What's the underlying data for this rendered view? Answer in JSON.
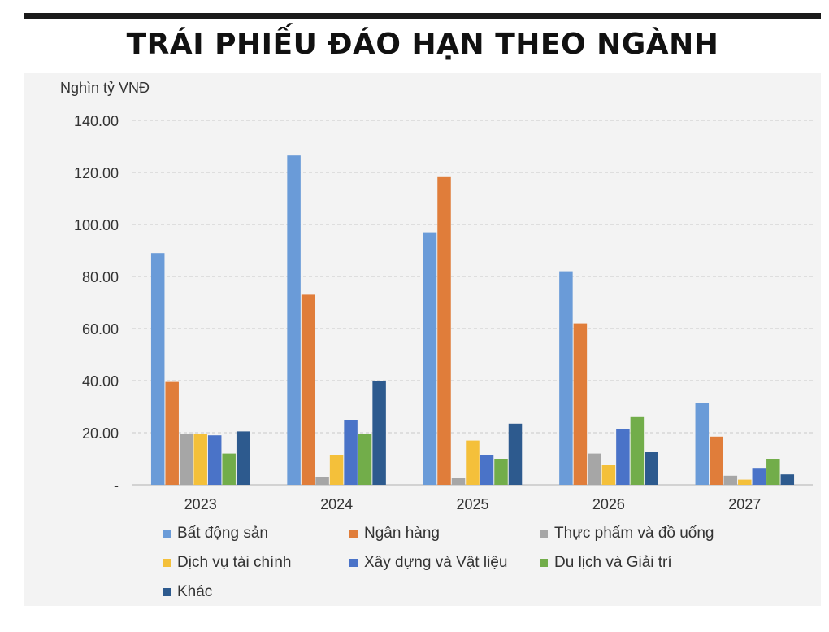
{
  "title": "TRÁI PHIẾU ĐÁO HẠN THEO NGÀNH",
  "chart_data": {
    "type": "bar",
    "ylabel": "Nghìn tỷ VNĐ",
    "categories": [
      "2023",
      "2024",
      "2025",
      "2026",
      "2027"
    ],
    "ylim": [
      0,
      140
    ],
    "yticks": [
      {
        "value": 0,
        "label": "-"
      },
      {
        "value": 20,
        "label": "20.00"
      },
      {
        "value": 40,
        "label": "40.00"
      },
      {
        "value": 60,
        "label": "60.00"
      },
      {
        "value": 80,
        "label": "80.00"
      },
      {
        "value": 100,
        "label": "100.00"
      },
      {
        "value": 120,
        "label": "120.00"
      },
      {
        "value": 140,
        "label": "140.00"
      }
    ],
    "grid": true,
    "legend_position": "bottom",
    "series": [
      {
        "name": "Bất động sản",
        "color": "#6a9bd8",
        "values": [
          89,
          126.5,
          97,
          82,
          31.5
        ]
      },
      {
        "name": "Ngân hàng",
        "color": "#e07d3a",
        "values": [
          39.5,
          73,
          118.5,
          62,
          18.5
        ]
      },
      {
        "name": "Thực phẩm và đồ uống",
        "color": "#a6a6a6",
        "values": [
          19.5,
          3,
          2.5,
          12,
          3.5
        ]
      },
      {
        "name": "Dịch vụ tài chính",
        "color": "#f4c03a",
        "values": [
          19.5,
          11.5,
          17,
          7.5,
          2
        ]
      },
      {
        "name": "Xây dựng và Vật liệu",
        "color": "#4a73c8",
        "values": [
          19,
          25,
          11.5,
          21.5,
          6.5
        ]
      },
      {
        "name": "Du lịch và Giải trí",
        "color": "#72ad4a",
        "values": [
          12,
          19.5,
          10,
          26,
          10
        ]
      },
      {
        "name": "Khác",
        "color": "#2d5a8e",
        "values": [
          20.5,
          40,
          23.5,
          12.5,
          4
        ]
      }
    ]
  }
}
